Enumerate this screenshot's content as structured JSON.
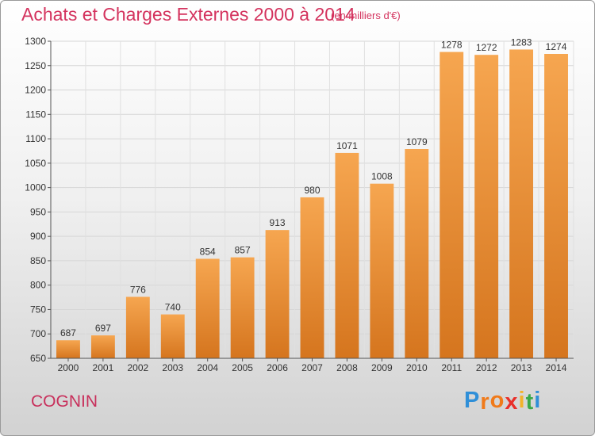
{
  "title": "Achats et Charges Externes 2000 à 2014",
  "subtitle": "(en milliers d'€)",
  "commune": "COGNIN",
  "logo": {
    "letters": [
      "P",
      "r",
      "o",
      "x",
      "i",
      "t",
      "i"
    ],
    "colors": [
      "#2f8fd8",
      "#f07a1a",
      "#f07a1a",
      "#e8302a",
      "#f2b32b",
      "#3aa84a",
      "#2f8fd8"
    ]
  },
  "colors": {
    "bar_top": "#f6a650",
    "bar_bottom": "#d5751e",
    "title": "#d4335e"
  },
  "chart_data": {
    "type": "bar",
    "categories": [
      "2000",
      "2001",
      "2002",
      "2003",
      "2004",
      "2005",
      "2006",
      "2007",
      "2008",
      "2009",
      "2010",
      "2011",
      "2012",
      "2013",
      "2014"
    ],
    "values": [
      687,
      697,
      776,
      740,
      854,
      857,
      913,
      980,
      1071,
      1008,
      1079,
      1278,
      1272,
      1283,
      1274
    ],
    "data_labels": [
      "687",
      "697",
      "776",
      "740",
      "854",
      "857",
      "913",
      "980",
      "1071",
      "1008",
      "1079",
      "1278",
      "1272",
      "1283",
      "1274"
    ],
    "title": "Achats et Charges Externes 2000 à 2014",
    "xlabel": "",
    "ylabel": "",
    "ylim": [
      650,
      1300
    ],
    "yticks": [
      "650",
      "700",
      "750",
      "800",
      "850",
      "900",
      "950",
      "1000",
      "1050",
      "1100",
      "1150",
      "1200",
      "1250",
      "1300"
    ],
    "grid": true
  }
}
